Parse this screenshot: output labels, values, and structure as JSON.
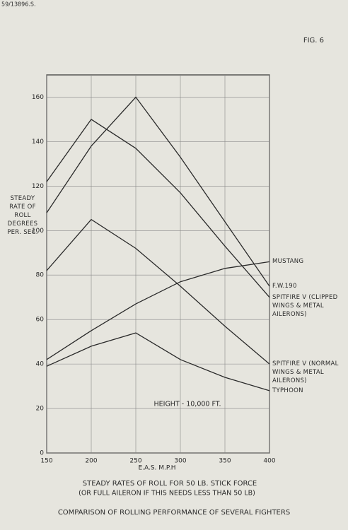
{
  "stamp": "59/13896.S.",
  "chart_data": {
    "type": "line",
    "figure_label": "FIG. 6",
    "y_label": "STEADY RATE OF ROLL DEGREES PER. SEC.",
    "x_label": "E.A.S. M.P.H",
    "annotation": "HEIGHT - 10,000 FT.",
    "caption": [
      "STEADY RATES OF ROLL FOR 50 LB. STICK FORCE",
      "(OR FULL AILERON IF THIS NEEDS LESS THAN 50 LB)"
    ],
    "title": "COMPARISON OF ROLLING PERFORMANCE OF SEVERAL FIGHTERS",
    "x": [
      150,
      200,
      250,
      300,
      350,
      400
    ],
    "series": [
      {
        "name": "MUSTANG",
        "color": "#2a2a2a",
        "values": [
          42,
          55,
          67,
          77,
          83,
          86
        ]
      },
      {
        "name": "F.W.190",
        "color": "#2a2a2a",
        "values": [
          108,
          138,
          160,
          133,
          104,
          75
        ]
      },
      {
        "name": "SPITFIRE V (CLIPPED WINGS & METAL AILERONS)",
        "color": "#2a2a2a",
        "values": [
          122,
          150,
          137,
          117,
          93,
          70
        ]
      },
      {
        "name": "SPITFIRE V (NORMAL WINGS & METAL AILERONS)",
        "color": "#2a2a2a",
        "values": [
          82,
          105,
          92,
          75,
          57,
          40
        ]
      },
      {
        "name": "TYPHOON",
        "color": "#2a2a2a",
        "values": [
          39,
          48,
          54,
          42,
          34,
          28
        ]
      }
    ],
    "xlim": [
      150,
      400
    ],
    "xticks": [
      150,
      200,
      250,
      300,
      350,
      400
    ],
    "ylim": [
      0,
      170
    ],
    "yticks": [
      0,
      20,
      40,
      60,
      80,
      100,
      120,
      140,
      160
    ],
    "grid": true
  }
}
